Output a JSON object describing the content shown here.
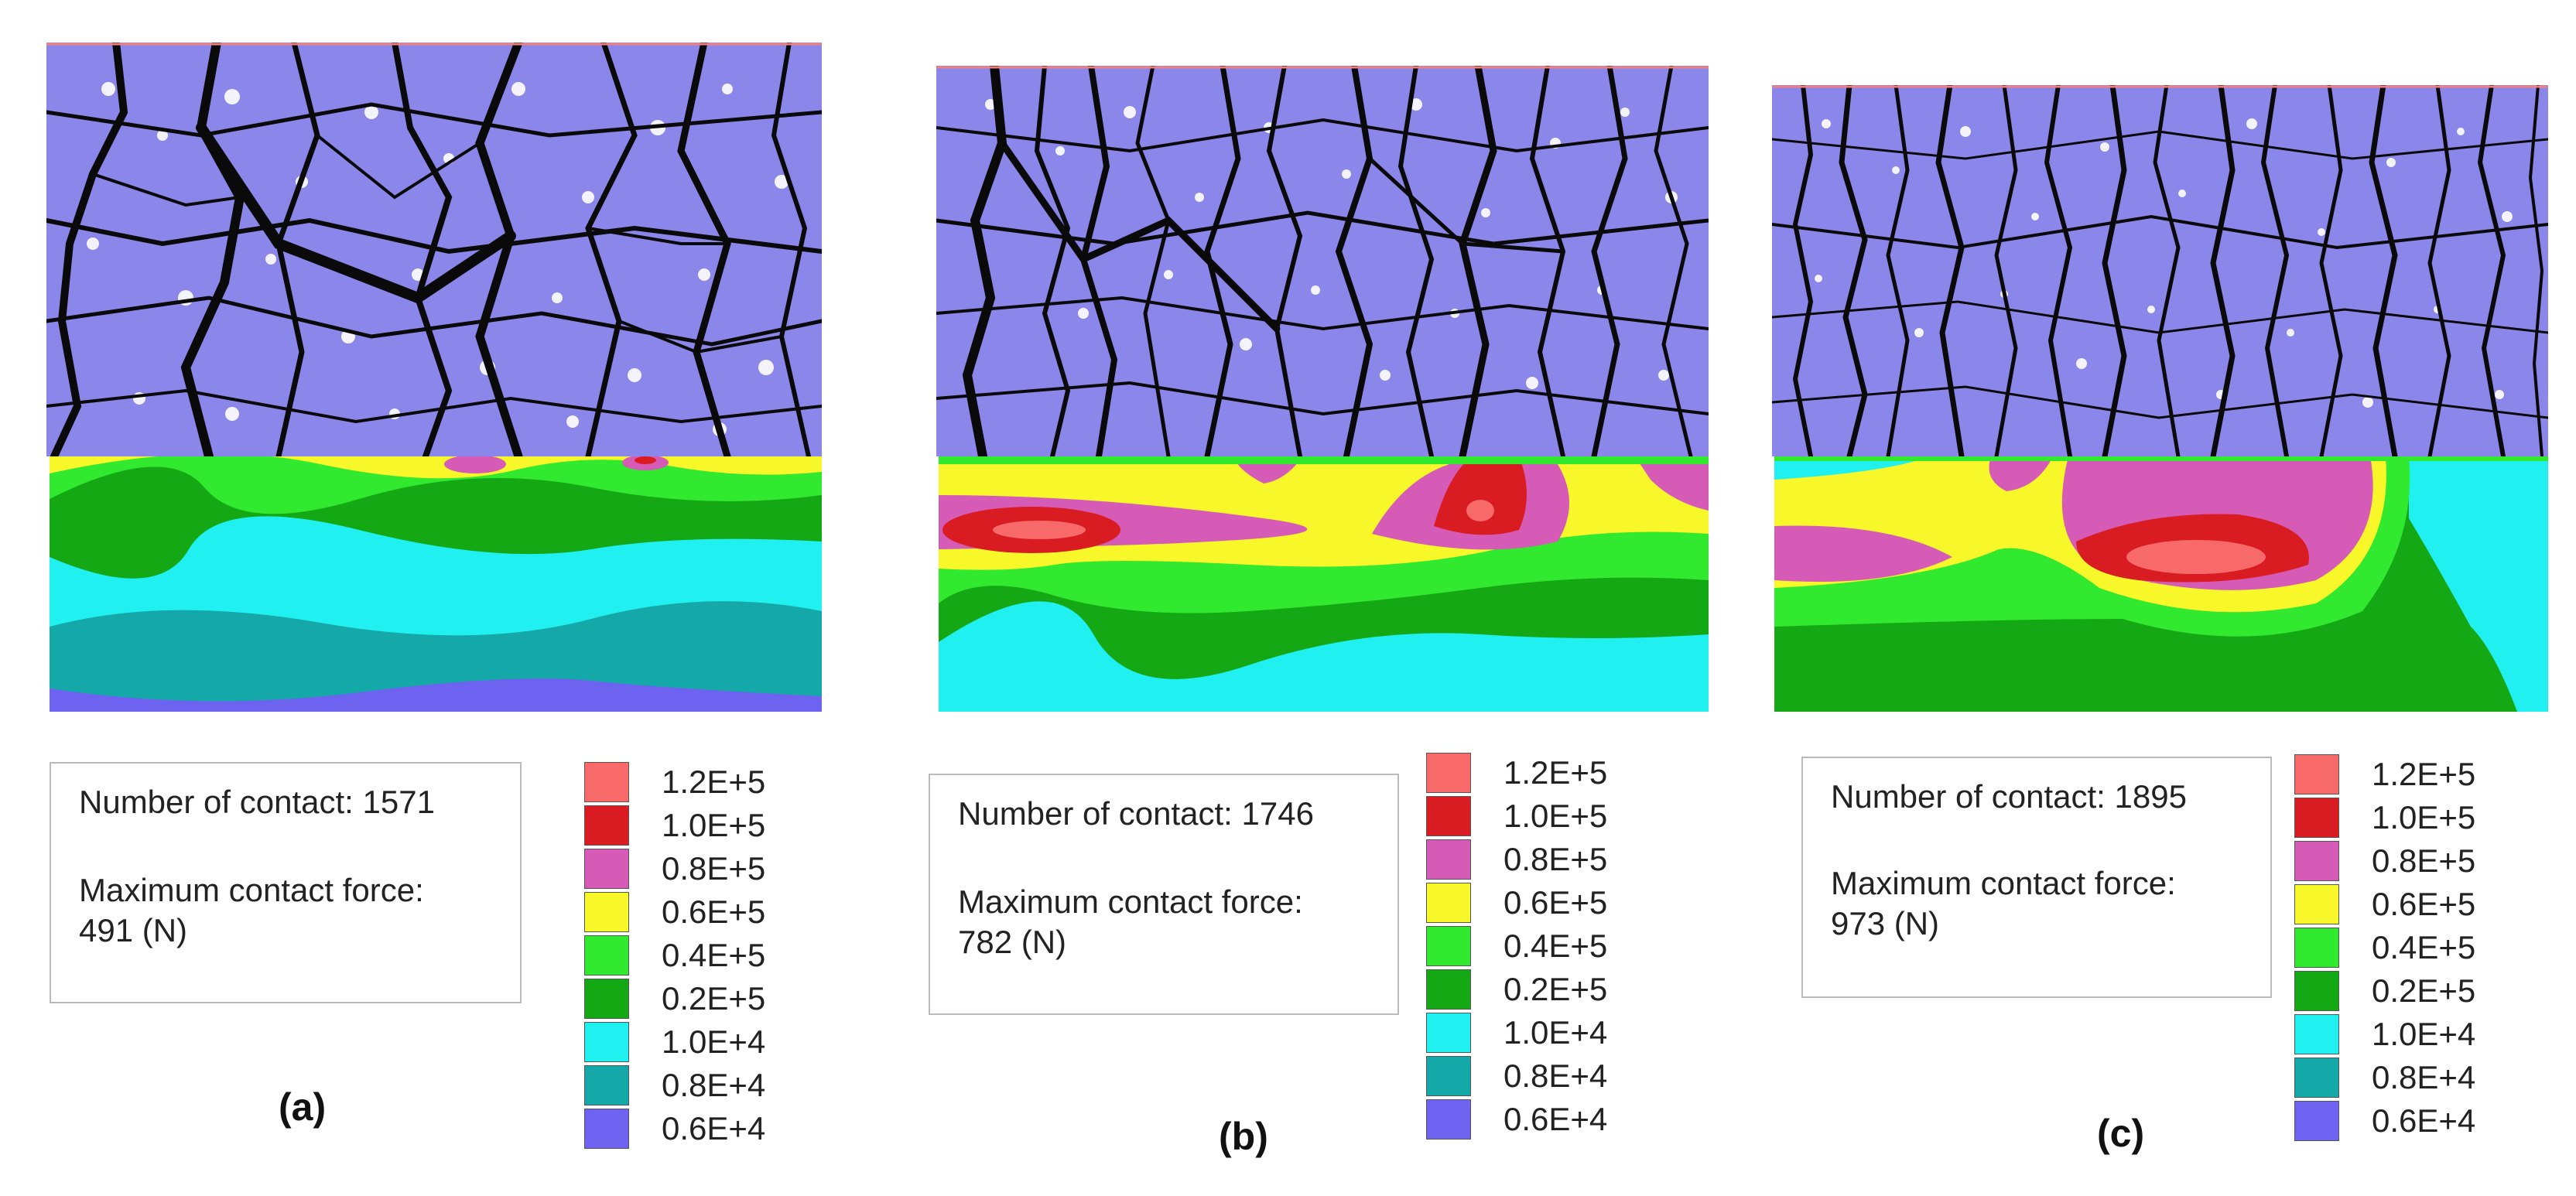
{
  "legend": {
    "items": [
      {
        "label": "1.2E+5",
        "color": "#f86a6a"
      },
      {
        "label": "1.0E+5",
        "color": "#d81c22"
      },
      {
        "label": "0.8E+5",
        "color": "#d65bb6"
      },
      {
        "label": "0.6E+5",
        "color": "#f7f72a"
      },
      {
        "label": "0.4E+5",
        "color": "#31e92e"
      },
      {
        "label": "0.2E+5",
        "color": "#15a815"
      },
      {
        "label": "1.0E+4",
        "color": "#20f0f0"
      },
      {
        "label": "0.8E+4",
        "color": "#15a8a8"
      },
      {
        "label": "0.6E+4",
        "color": "#6e63f0"
      }
    ]
  },
  "colors": {
    "particle": "#8b86ea",
    "chain": "#0a0a0a",
    "frame_top": "#f08080"
  },
  "panels": [
    {
      "caption": "(a)",
      "contact_label": "Number of contact:",
      "contact_count": "1571",
      "force_label": "Maximum contact force:",
      "force_value": "491 (N)"
    },
    {
      "caption": "(b)",
      "contact_label": "Number of contact:",
      "contact_count": "1746",
      "force_label": "Maximum contact force:",
      "force_value": "782 (N)"
    },
    {
      "caption": "(c)",
      "contact_label": "Number of contact:",
      "contact_count": "1895",
      "force_label": "Maximum contact force:",
      "force_value": "973 (N)"
    }
  ]
}
